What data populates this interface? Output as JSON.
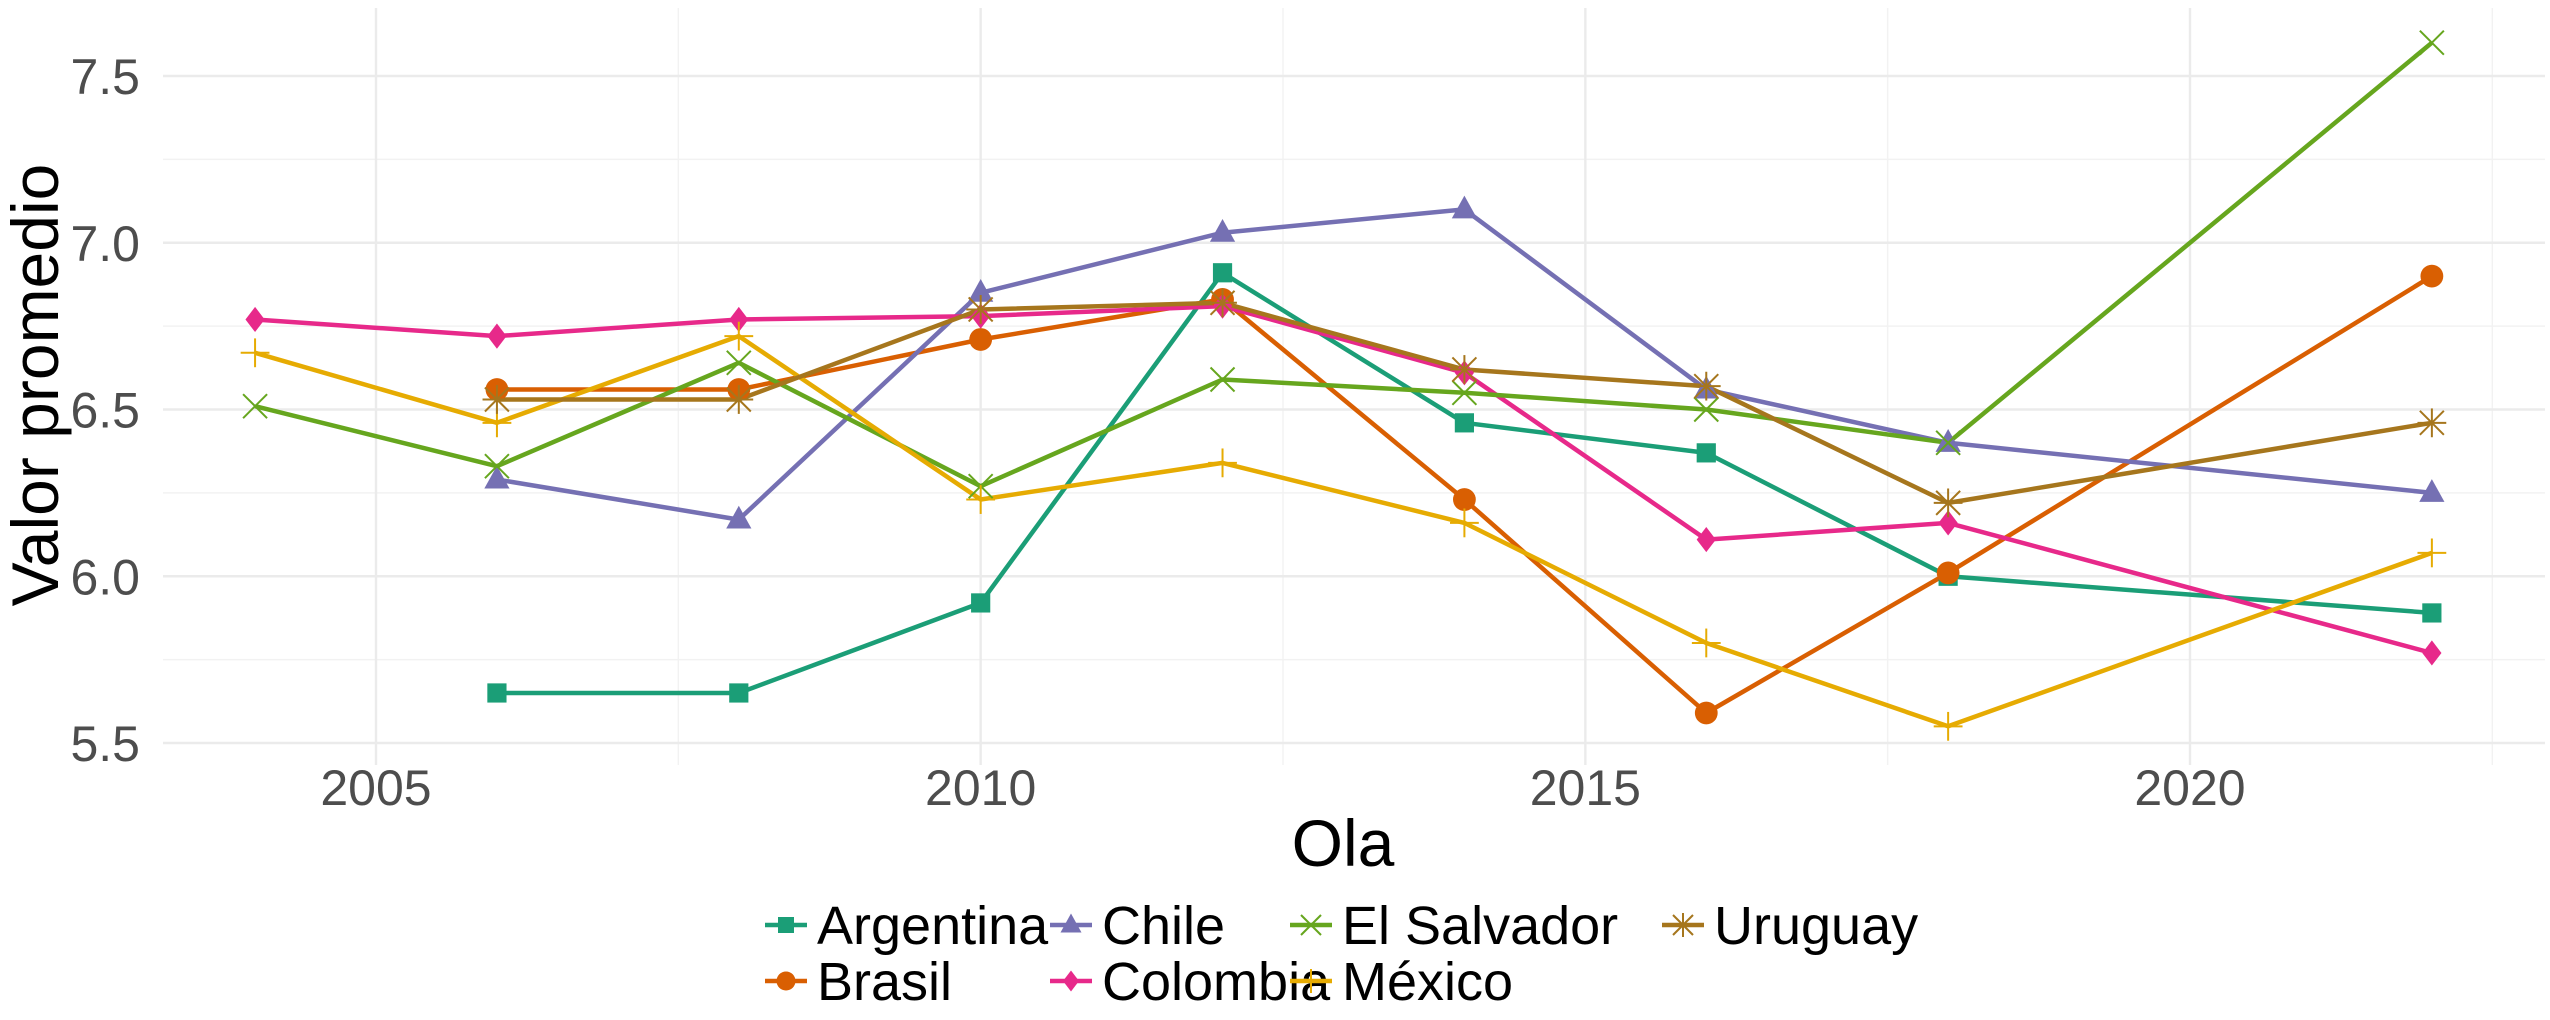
{
  "chart_data": {
    "type": "line",
    "title": "",
    "xlabel": "Ola",
    "ylabel": "Valor promedio",
    "xlim": [
      2003.3,
      2023.1
    ],
    "ylim": [
      5.39,
      7.69
    ],
    "x_ticks": [
      2005,
      2010,
      2015,
      2020
    ],
    "x_tick_labels": [
      "2005",
      "2010",
      "2015",
      "2020"
    ],
    "y_ticks": [
      5.5,
      6.0,
      6.5,
      7.0,
      7.5
    ],
    "y_tick_labels": [
      "5.5",
      "6.0",
      "6.5",
      "7.0",
      "7.5"
    ],
    "grid": true,
    "legend_position": "bottom",
    "series": [
      {
        "name": "Argentina",
        "color": "#1B9E77",
        "marker": "square",
        "x": [
          2006,
          2008,
          2010,
          2012,
          2014,
          2016,
          2018,
          2022
        ],
        "values": [
          5.65,
          5.65,
          5.92,
          6.91,
          6.46,
          6.37,
          6.0,
          5.89
        ]
      },
      {
        "name": "Brasil",
        "color": "#D95F02",
        "marker": "circle",
        "x": [
          2006,
          2008,
          2010,
          2012,
          2014,
          2016,
          2018,
          2022
        ],
        "values": [
          6.56,
          6.56,
          6.71,
          6.83,
          6.23,
          5.59,
          6.01,
          6.9
        ]
      },
      {
        "name": "Chile",
        "color": "#7570B3",
        "marker": "triangle",
        "x": [
          2006,
          2008,
          2010,
          2012,
          2014,
          2016,
          2018,
          2022
        ],
        "values": [
          6.29,
          6.17,
          6.85,
          7.03,
          7.1,
          6.56,
          6.4,
          6.25
        ]
      },
      {
        "name": "Colombia",
        "color": "#E7298A",
        "marker": "diamond",
        "x": [
          2004,
          2006,
          2008,
          2010,
          2012,
          2014,
          2016,
          2018,
          2022
        ],
        "values": [
          6.77,
          6.72,
          6.77,
          6.78,
          6.81,
          6.61,
          6.11,
          6.16,
          5.77
        ]
      },
      {
        "name": "El Salvador",
        "color": "#66A61E",
        "marker": "x",
        "x": [
          2004,
          2006,
          2008,
          2010,
          2012,
          2014,
          2016,
          2018,
          2022
        ],
        "values": [
          6.51,
          6.33,
          6.64,
          6.27,
          6.59,
          6.55,
          6.5,
          6.4,
          7.6
        ]
      },
      {
        "name": "México",
        "color": "#E6AB02",
        "marker": "plus",
        "x": [
          2004,
          2006,
          2008,
          2010,
          2012,
          2014,
          2016,
          2018,
          2022
        ],
        "values": [
          6.67,
          6.46,
          6.72,
          6.23,
          6.34,
          6.16,
          5.8,
          5.55,
          6.07
        ]
      },
      {
        "name": "Uruguay",
        "color": "#A6761D",
        "marker": "asterisk",
        "x": [
          2006,
          2008,
          2010,
          2012,
          2014,
          2016,
          2018,
          2022
        ],
        "values": [
          6.53,
          6.53,
          6.8,
          6.82,
          6.62,
          6.57,
          6.22,
          6.46
        ]
      }
    ],
    "legend_layout": [
      [
        "Argentina",
        "Chile",
        "El Salvador",
        "Uruguay"
      ],
      [
        "Brasil",
        "Colombia",
        "México"
      ]
    ]
  }
}
